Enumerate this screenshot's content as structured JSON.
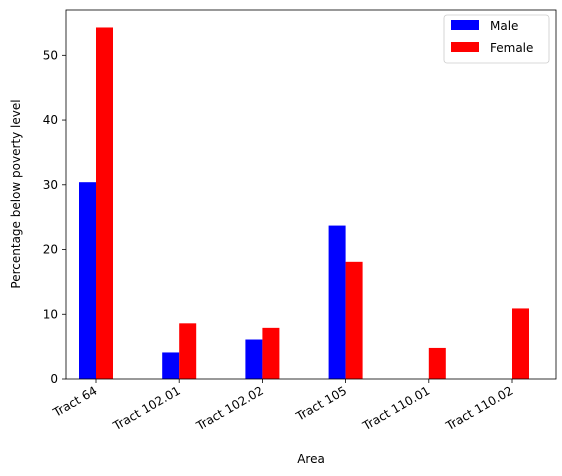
{
  "chart_data": {
    "type": "bar",
    "title": "",
    "xlabel": "Area",
    "ylabel": "Percentage below poverty level",
    "categories": [
      "Tract 64",
      "Tract 102.01",
      "Tract 102.02",
      "Tract 105",
      "Tract 110.01",
      "Tract 110.02"
    ],
    "series": [
      {
        "name": "Male",
        "color": "#0000ff",
        "values": [
          30.4,
          4.1,
          6.1,
          23.7,
          0,
          0
        ]
      },
      {
        "name": "Female",
        "color": "#ff0000",
        "values": [
          54.3,
          8.6,
          7.9,
          18.1,
          4.8,
          10.9
        ]
      }
    ],
    "ylim": [
      0,
      57
    ],
    "yticks": [
      "0",
      "10",
      "20",
      "30",
      "40",
      "50"
    ],
    "grid": false,
    "legend_position": "top-right"
  }
}
